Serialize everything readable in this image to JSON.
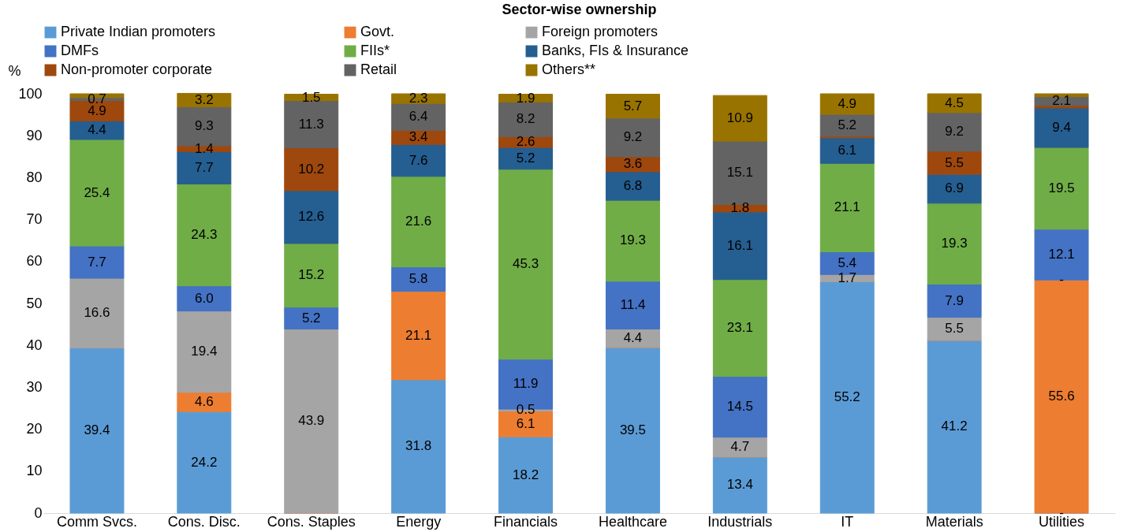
{
  "chart_data": {
    "type": "bar",
    "stacked": true,
    "title": "Sector-wise ownership",
    "ylabel": "%",
    "categories": [
      "Comm Svcs.",
      "Cons. Disc.",
      "Cons. Staples",
      "Energy",
      "Financials",
      "Healthcare",
      "Industrials",
      "IT",
      "Materials",
      "Utilities"
    ],
    "series": [
      {
        "name": "Private Indian promoters",
        "color": "#5b9bd5",
        "values": [
          39.4,
          24.2,
          0,
          31.8,
          18.2,
          39.5,
          13.4,
          55.2,
          41.2,
          0
        ],
        "value_labels": [
          "39.4",
          "24.2",
          null,
          "31.8",
          "18.2",
          "39.5",
          "13.4",
          "55.2",
          "41.2",
          "-"
        ]
      },
      {
        "name": "Govt.",
        "color": "#ed7d31",
        "values": [
          0,
          4.6,
          0,
          21.1,
          6.1,
          0,
          0,
          0,
          0,
          55.6
        ],
        "value_labels": [
          null,
          "4.6",
          null,
          "21.1",
          "6.1",
          null,
          null,
          null,
          null,
          "55.6"
        ]
      },
      {
        "name": "Foreign promoters",
        "color": "#a5a5a5",
        "values": [
          16.6,
          19.4,
          43.9,
          0,
          0.5,
          4.4,
          4.7,
          1.7,
          5.5,
          0
        ],
        "value_labels": [
          "16.6",
          "19.4",
          "43.9",
          null,
          "0.5",
          "4.4",
          "4.7",
          "1.7",
          "5.5",
          "-"
        ]
      },
      {
        "name": "DMFs",
        "color": "#4472c4",
        "values": [
          7.7,
          6.0,
          5.2,
          5.8,
          11.9,
          11.4,
          14.5,
          5.4,
          7.9,
          12.1
        ],
        "value_labels": [
          "7.7",
          "6.0",
          "5.2",
          "5.8",
          "11.9",
          "11.4",
          "14.5",
          "5.4",
          "7.9",
          "12.1"
        ]
      },
      {
        "name": "FIIs*",
        "color": "#70ad47",
        "values": [
          25.4,
          24.3,
          15.2,
          21.6,
          45.3,
          19.3,
          23.1,
          21.1,
          19.3,
          19.5
        ],
        "value_labels": [
          "25.4",
          "24.3",
          "15.2",
          "21.6",
          "45.3",
          "19.3",
          "23.1",
          "21.1",
          "19.3",
          "19.5"
        ]
      },
      {
        "name": "Banks, FIs & Insurance",
        "color": "#255e91",
        "values": [
          4.4,
          7.7,
          12.6,
          7.6,
          5.2,
          6.8,
          16.1,
          6.1,
          6.9,
          9.4
        ],
        "value_labels": [
          "4.4",
          "7.7",
          "12.6",
          "7.6",
          "5.2",
          "6.8",
          "16.1",
          "6.1",
          "6.9",
          "9.4"
        ]
      },
      {
        "name": "Non-promoter corporate",
        "color": "#9e480e",
        "values": [
          4.9,
          1.4,
          10.2,
          3.4,
          2.6,
          3.6,
          1.8,
          0.4,
          5.5,
          0.6
        ],
        "value_labels": [
          "4.9",
          "1.4",
          "10.2",
          "3.4",
          "2.6",
          "3.6",
          "1.8",
          null,
          "5.5",
          null
        ]
      },
      {
        "name": "Retail",
        "color": "#636363",
        "values": [
          0.7,
          9.3,
          11.3,
          6.4,
          8.2,
          9.2,
          15.1,
          5.2,
          9.2,
          2.1
        ],
        "value_labels": [
          "0.7",
          "9.3",
          "11.3",
          "6.4",
          "8.2",
          "9.2",
          "15.1",
          "5.2",
          "9.2",
          "2.1"
        ]
      },
      {
        "name": "Others**",
        "color": "#997300",
        "values": [
          0.9,
          3.2,
          1.5,
          2.3,
          1.9,
          5.7,
          10.9,
          4.9,
          4.5,
          0.7
        ],
        "value_labels": [
          null,
          "3.2",
          "1.5",
          "2.3",
          "1.9",
          "5.7",
          "10.9",
          "4.9",
          "4.5",
          null
        ]
      }
    ],
    "ylim": [
      0,
      100
    ],
    "yticks": [
      0,
      10,
      20,
      30,
      40,
      50,
      60,
      70,
      80,
      90,
      100
    ],
    "grid": false,
    "legend": "top"
  }
}
